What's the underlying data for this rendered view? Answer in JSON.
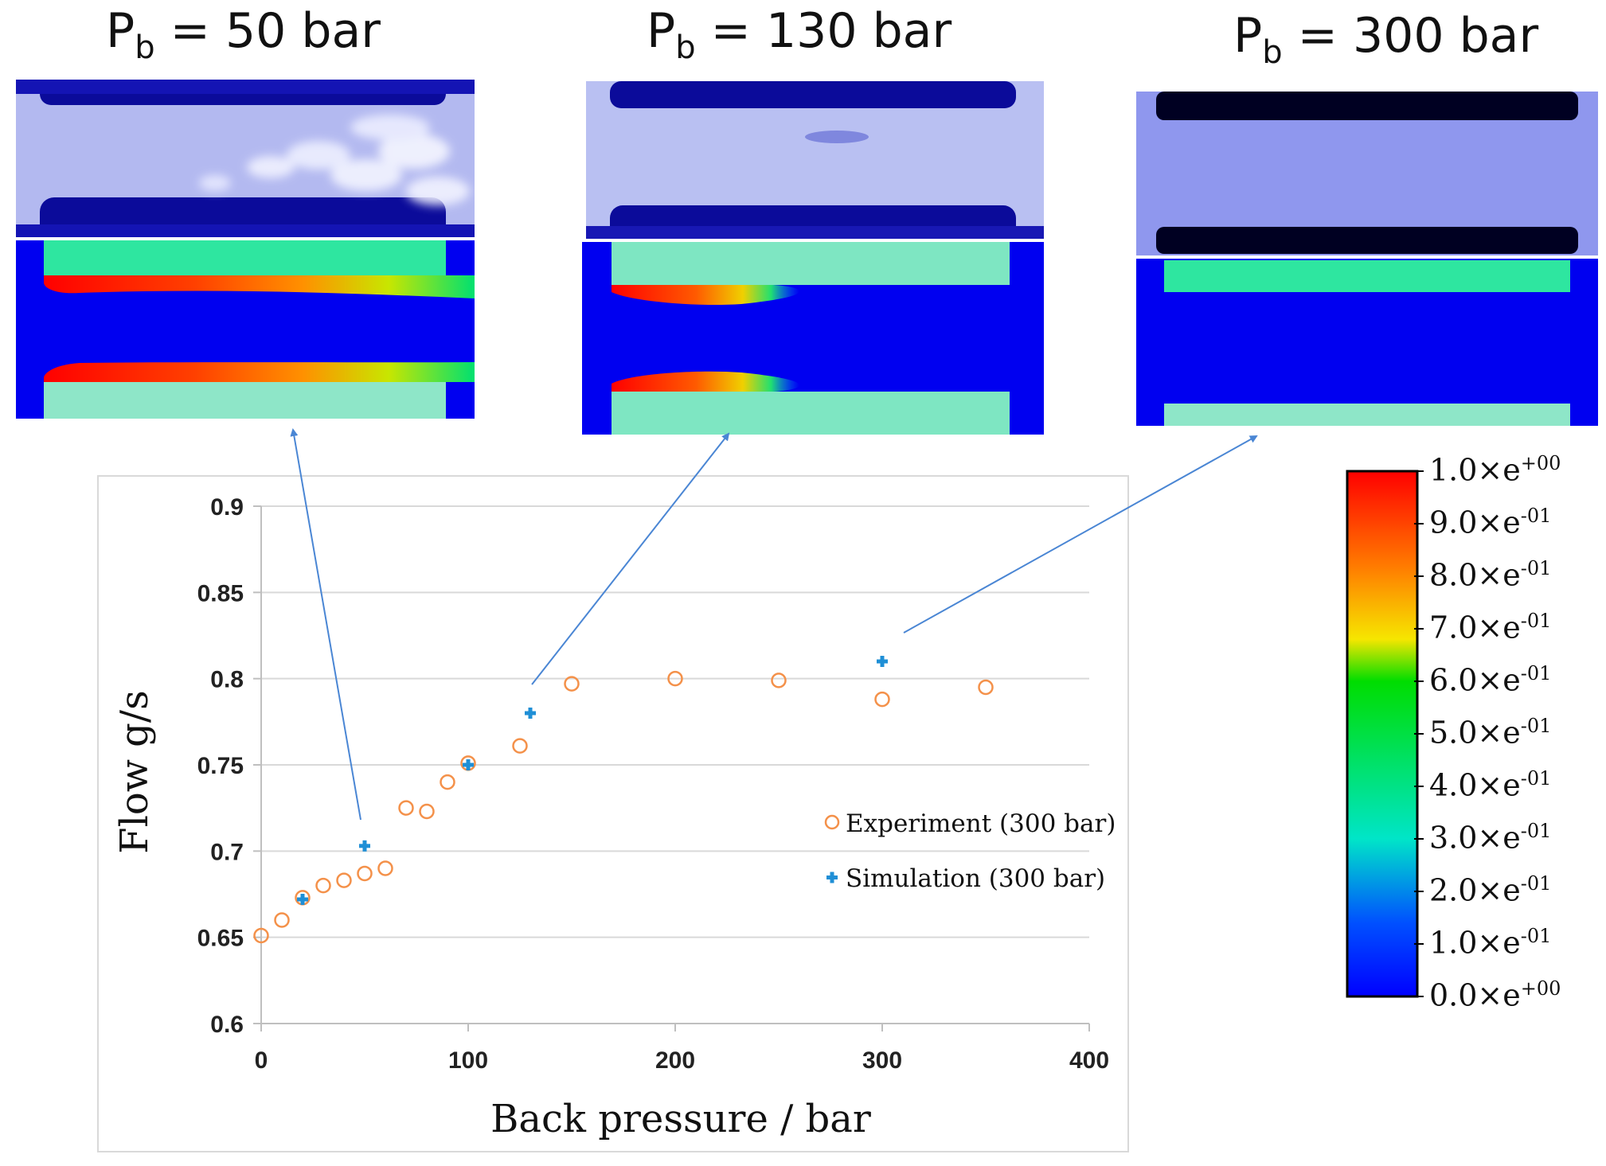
{
  "panels": [
    {
      "title_main": "P",
      "title_sub": "b",
      "title_rest": " = 50 bar"
    },
    {
      "title_main": "P",
      "title_sub": "b",
      "title_rest": " = 130 bar"
    },
    {
      "title_main": "P",
      "title_sub": "b",
      "title_rest": " = 300 bar"
    }
  ],
  "colorbar": {
    "labels": [
      {
        "mant": "1.0×e",
        "exp": "+00"
      },
      {
        "mant": "9.0×e",
        "exp": "-01"
      },
      {
        "mant": "8.0×e",
        "exp": "-01"
      },
      {
        "mant": "7.0×e",
        "exp": "-01"
      },
      {
        "mant": "6.0×e",
        "exp": "-01"
      },
      {
        "mant": "5.0×e",
        "exp": "-01"
      },
      {
        "mant": "4.0×e",
        "exp": "-01"
      },
      {
        "mant": "3.0×e",
        "exp": "-01"
      },
      {
        "mant": "2.0×e",
        "exp": "-01"
      },
      {
        "mant": "1.0×e",
        "exp": "-01"
      },
      {
        "mant": "0.0×e",
        "exp": "+00"
      }
    ],
    "colors": [
      "#ff0000",
      "#ff8c00",
      "#f0f000",
      "#00dd00",
      "#00e5c8",
      "#0000ff"
    ]
  },
  "chart_data": {
    "type": "scatter",
    "xlabel": "Back pressure / bar",
    "ylabel": "Flow g/s",
    "xlim": [
      0,
      400
    ],
    "ylim": [
      0.6,
      0.9
    ],
    "xticks": [
      "0",
      "100",
      "200",
      "300",
      "400"
    ],
    "yticks": [
      "0.6",
      "0.65",
      "0.7",
      "0.75",
      "0.8",
      "0.85",
      "0.9"
    ],
    "grid": "horizontal",
    "legend_position": "right",
    "series": [
      {
        "name": "Experiment (300 bar)",
        "marker": "open-circle",
        "color": "#f4914a",
        "points": [
          [
            0,
            0.651
          ],
          [
            10,
            0.66
          ],
          [
            20,
            0.673
          ],
          [
            30,
            0.68
          ],
          [
            40,
            0.683
          ],
          [
            50,
            0.687
          ],
          [
            60,
            0.69
          ],
          [
            70,
            0.725
          ],
          [
            80,
            0.723
          ],
          [
            90,
            0.74
          ],
          [
            100,
            0.751
          ],
          [
            125,
            0.761
          ],
          [
            150,
            0.797
          ],
          [
            200,
            0.8
          ],
          [
            250,
            0.799
          ],
          [
            300,
            0.788
          ],
          [
            350,
            0.795
          ]
        ]
      },
      {
        "name": "Simulation (300 bar)",
        "marker": "plus",
        "color": "#1f8fd6",
        "points": [
          [
            20,
            0.672
          ],
          [
            50,
            0.703
          ],
          [
            100,
            0.75
          ],
          [
            130,
            0.78
          ],
          [
            300,
            0.81
          ]
        ]
      }
    ]
  }
}
